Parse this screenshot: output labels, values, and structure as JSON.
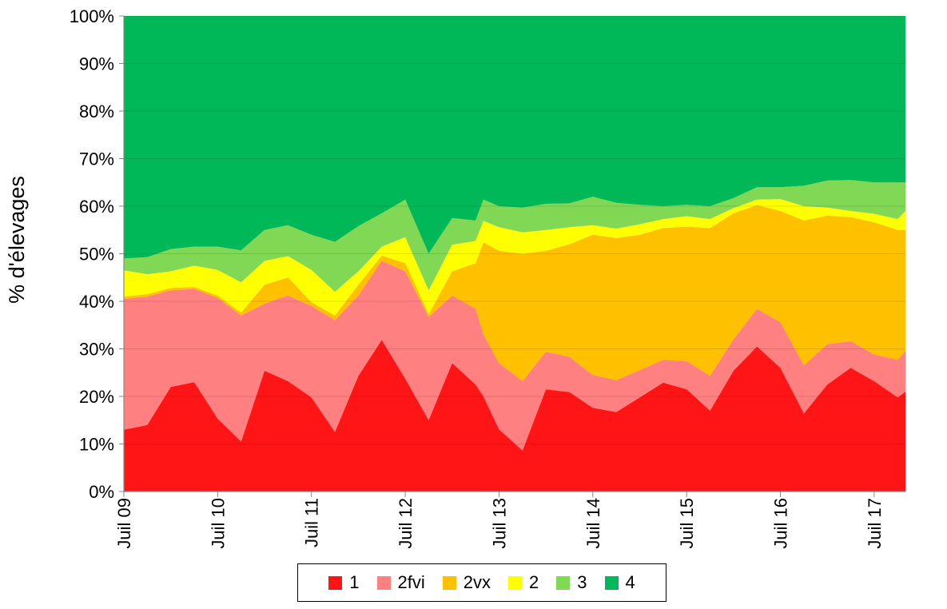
{
  "chart_data": {
    "type": "area",
    "stacked": "100%",
    "title": "",
    "xlabel": "",
    "ylabel": "% d'élevages",
    "ylim": [
      0,
      100
    ],
    "xlim": [
      "2009-07",
      "2017-11"
    ],
    "yticks": [
      "0%",
      "10%",
      "20%",
      "30%",
      "40%",
      "50%",
      "60%",
      "70%",
      "80%",
      "90%",
      "100%"
    ],
    "xticks": [
      {
        "date": "2009-07",
        "label": "Juil 09"
      },
      {
        "date": "2010-07",
        "label": "Juil 10"
      },
      {
        "date": "2011-07",
        "label": "Juil 11"
      },
      {
        "date": "2012-07",
        "label": "Juil 12"
      },
      {
        "date": "2013-07",
        "label": "Juil 13"
      },
      {
        "date": "2014-07",
        "label": "Juil 14"
      },
      {
        "date": "2015-07",
        "label": "Juil 15"
      },
      {
        "date": "2016-07",
        "label": "Juil 16"
      },
      {
        "date": "2017-07",
        "label": "Juil 17"
      }
    ],
    "grid": true,
    "legend_position": "bottom",
    "x": [
      "2009-07",
      "2009-10",
      "2010-01",
      "2010-04",
      "2010-07",
      "2010-10",
      "2011-01",
      "2011-04",
      "2011-07",
      "2011-10",
      "2012-01",
      "2012-04",
      "2012-07",
      "2012-10",
      "2013-01",
      "2013-04",
      "2013-05",
      "2013-07",
      "2013-10",
      "2014-01",
      "2014-04",
      "2014-07",
      "2014-10",
      "2015-01",
      "2015-04",
      "2015-07",
      "2015-10",
      "2016-01",
      "2016-04",
      "2016-07",
      "2016-10",
      "2017-01",
      "2017-04",
      "2017-07",
      "2017-10",
      "2017-11"
    ],
    "series": [
      {
        "name": "1",
        "color": "#FF1515",
        "values": [
          13,
          14,
          22,
          23,
          15.3,
          10.5,
          25.4,
          23.2,
          19.8,
          12.5,
          24.3,
          31.9,
          23.7,
          15,
          27,
          22.5,
          20,
          13.1,
          8.6,
          21.5,
          20.9,
          17.6,
          16.7,
          19.8,
          22.9,
          21.5,
          17,
          25.4,
          30.5,
          26,
          16.4,
          22.5,
          26,
          23.2,
          19.8,
          21
        ]
      },
      {
        "name": "2fvi",
        "color": "#FF8080",
        "values": [
          27.5,
          27,
          20.3,
          19.6,
          25.4,
          26.5,
          14.1,
          18,
          19.2,
          23.5,
          16.9,
          16.6,
          22.6,
          21.7,
          14.2,
          15.9,
          13,
          13.9,
          14.6,
          7.9,
          7.4,
          6.9,
          6.7,
          5.7,
          4.8,
          5.9,
          7.3,
          6.6,
          7.9,
          9.6,
          10.1,
          8.5,
          5.6,
          5.6,
          7.9,
          8.5
        ]
      },
      {
        "name": "2vx",
        "color": "#FFC000",
        "values": [
          0.5,
          0.5,
          0.5,
          0.4,
          0.5,
          0.6,
          4,
          3.8,
          0.8,
          1,
          2.3,
          1.1,
          1.7,
          0.6,
          5.1,
          9.6,
          19.4,
          23.6,
          26.8,
          21.2,
          23.7,
          29.5,
          29.9,
          28.5,
          27.7,
          28.3,
          31.1,
          26.5,
          21.8,
          23.4,
          30.5,
          27,
          26.1,
          27.8,
          27.3,
          25.5
        ]
      },
      {
        "name": "2",
        "color": "#FFFF00",
        "values": [
          5.5,
          4.2,
          3.5,
          4.5,
          5.4,
          6.4,
          5,
          4.5,
          6.8,
          5,
          2.8,
          1.9,
          5.5,
          5,
          5.6,
          4.7,
          4.5,
          5,
          4.5,
          4.4,
          3.6,
          2,
          2,
          2.2,
          1.9,
          2.2,
          1.9,
          1.1,
          1.2,
          2.5,
          3,
          1.7,
          1.3,
          1.8,
          2.3,
          4
        ]
      },
      {
        "name": "3",
        "color": "#80D855",
        "values": [
          2.5,
          3.6,
          4.7,
          4,
          4.9,
          6.7,
          6.5,
          6.5,
          7.4,
          10.5,
          9.5,
          7,
          7.9,
          7.7,
          5.6,
          4.3,
          4.5,
          4.4,
          5.2,
          5.5,
          5,
          6,
          5.4,
          4.1,
          2.7,
          2.4,
          2.7,
          2.1,
          2.6,
          2.5,
          4.3,
          5.7,
          6.5,
          6.6,
          7.7,
          6
        ]
      },
      {
        "name": "4",
        "color": "#00B858",
        "values": [
          51,
          50.7,
          49,
          48.5,
          48.5,
          49.3,
          45,
          44,
          46,
          47.5,
          44.2,
          41.5,
          38.6,
          50,
          42.5,
          43,
          38.6,
          40,
          40.3,
          39.5,
          39.4,
          38,
          39.3,
          39.7,
          40,
          39.7,
          40,
          38.3,
          36,
          36,
          35.7,
          34.6,
          34.5,
          35,
          35,
          35
        ]
      }
    ]
  }
}
